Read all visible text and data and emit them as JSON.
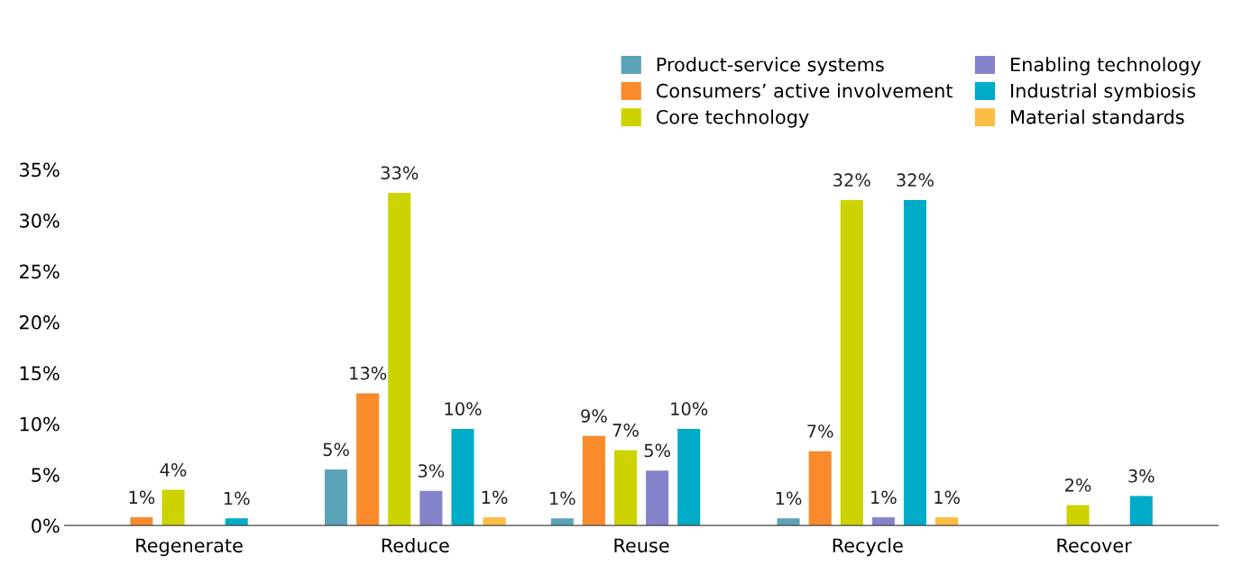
{
  "chart_data": {
    "type": "bar",
    "categories": [
      "Regenerate",
      "Reduce",
      "Reuse",
      "Recycle",
      "Recover"
    ],
    "series": [
      {
        "name": "Product-service systems",
        "color": "#5ba3b8",
        "values": [
          null,
          5.5,
          0.7,
          0.7,
          null
        ],
        "value_labels": [
          null,
          "5%",
          "1%",
          "1%",
          null
        ]
      },
      {
        "name": "Consumers’ active involvement",
        "color": "#f98b2c",
        "values": [
          0.8,
          13.0,
          8.8,
          7.3,
          null
        ],
        "value_labels": [
          "1%",
          "13%",
          "9%",
          "7%",
          null
        ]
      },
      {
        "name": "Core technology",
        "color": "#cdd300",
        "values": [
          3.5,
          32.7,
          7.4,
          32.0,
          2.0
        ],
        "value_labels": [
          "4%",
          "33%",
          "7%",
          "32%",
          "2%"
        ]
      },
      {
        "name": "Enabling technology",
        "color": "#8584cb",
        "values": [
          null,
          3.4,
          5.4,
          0.8,
          null
        ],
        "value_labels": [
          null,
          "3%",
          "5%",
          "1%",
          null
        ]
      },
      {
        "name": "Industrial symbiosis",
        "color": "#00abc8",
        "values": [
          0.7,
          9.5,
          9.5,
          32.0,
          2.9
        ],
        "value_labels": [
          "1%",
          "10%",
          "10%",
          "32%",
          "3%"
        ]
      },
      {
        "name": "Material standards",
        "color": "#fbbd45",
        "values": [
          null,
          0.8,
          null,
          0.8,
          null
        ],
        "value_labels": [
          null,
          "1%",
          null,
          "1%",
          null
        ]
      }
    ],
    "ylim": [
      0,
      35
    ],
    "yticks": [
      {
        "value": 0,
        "label": "0%"
      },
      {
        "value": 5,
        "label": "5%"
      },
      {
        "value": 10,
        "label": "10%"
      },
      {
        "value": 15,
        "label": "15%"
      },
      {
        "value": 20,
        "label": "20%"
      },
      {
        "value": 25,
        "label": "25%"
      },
      {
        "value": 30,
        "label": "30%"
      },
      {
        "value": 35,
        "label": "35%"
      }
    ],
    "grid": false,
    "legend": "top right"
  }
}
